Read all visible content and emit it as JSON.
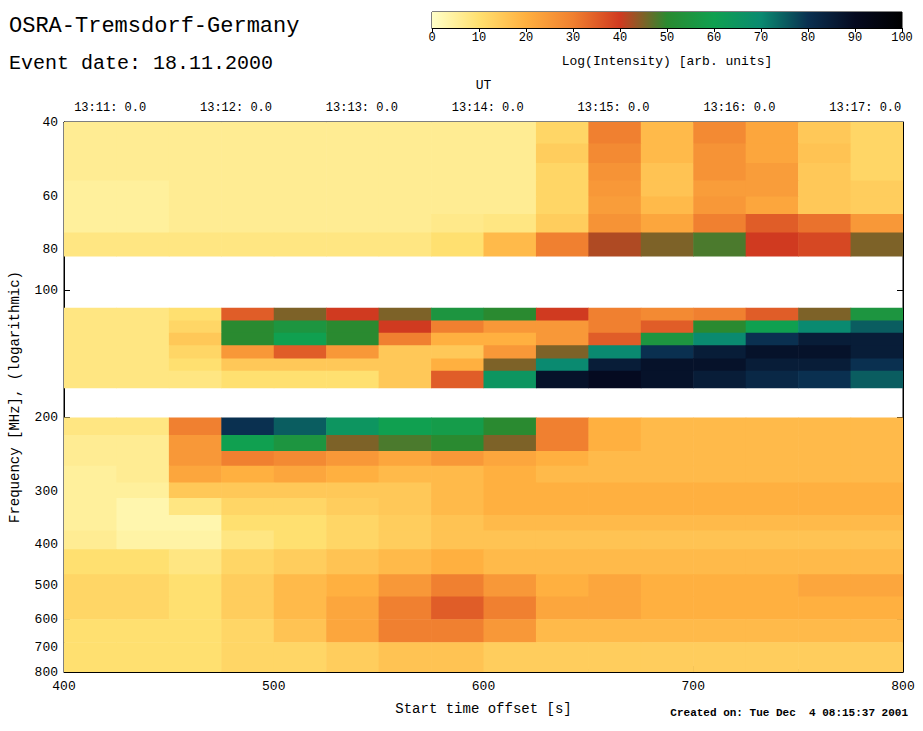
{
  "chart_data": {
    "type": "heatmap",
    "title": "OSRA-Tremsdorf-Germany",
    "subtitle": "Event date: 18.11.2000",
    "annotations": [
      "Created on: Tue Dec  4 08:15:37 2001"
    ],
    "xlabel": "Start time offset [s]",
    "ylabel": "Frequency [MHz], (logarithmic)",
    "x2label": "UT",
    "xlim": [
      400,
      800
    ],
    "xticks": [
      400,
      500,
      600,
      700,
      800
    ],
    "x2lim": [
      400,
      800
    ],
    "x2ticks": [
      {
        "value": 422,
        "label": "13:11: 0.0"
      },
      {
        "value": 482,
        "label": "13:12: 0.0"
      },
      {
        "value": 542,
        "label": "13:13: 0.0"
      },
      {
        "value": 602,
        "label": "13:14: 0.0"
      },
      {
        "value": 662,
        "label": "13:15: 0.0"
      },
      {
        "value": 722,
        "label": "13:16: 0.0"
      },
      {
        "value": 782,
        "label": "13:17: 0.0"
      }
    ],
    "ylim": [
      40,
      800
    ],
    "yticks": [
      40,
      60,
      80,
      100,
      200,
      300,
      400,
      500,
      600,
      700,
      800
    ],
    "log": "y",
    "grid": false,
    "cells": {
      "time_edges": [
        400,
        425,
        450,
        475,
        500,
        525,
        550,
        575,
        600,
        625,
        650,
        675,
        700,
        725,
        750,
        775,
        800
      ],
      "rows": [
        {
          "freq": [
            40,
            45
          ],
          "values": [
            6,
            6,
            6,
            6,
            6,
            6,
            6,
            6,
            6,
            12,
            30,
            18,
            28,
            22,
            15,
            12
          ]
        },
        {
          "freq": [
            45,
            50
          ],
          "values": [
            6,
            6,
            6,
            6,
            6,
            6,
            6,
            6,
            6,
            14,
            28,
            18,
            26,
            22,
            16,
            12
          ]
        },
        {
          "freq": [
            50,
            55
          ],
          "values": [
            6,
            6,
            6,
            6,
            6,
            6,
            6,
            6,
            6,
            12,
            26,
            16,
            26,
            24,
            15,
            12
          ]
        },
        {
          "freq": [
            55,
            60
          ],
          "values": [
            5,
            5,
            6,
            6,
            6,
            6,
            6,
            6,
            6,
            12,
            25,
            16,
            24,
            24,
            15,
            14
          ]
        },
        {
          "freq": [
            60,
            66
          ],
          "values": [
            5,
            5,
            6,
            6,
            6,
            6,
            6,
            6,
            6,
            12,
            24,
            18,
            25,
            22,
            15,
            14
          ]
        },
        {
          "freq": [
            66,
            73
          ],
          "values": [
            5,
            5,
            6,
            6,
            6,
            6,
            6,
            7,
            8,
            14,
            26,
            22,
            30,
            35,
            32,
            25
          ]
        },
        {
          "freq": [
            73,
            83
          ],
          "values": [
            8,
            8,
            8,
            8,
            8,
            8,
            8,
            10,
            18,
            30,
            42,
            45,
            48,
            40,
            38,
            45
          ]
        },
        {
          "freq": [
            110,
            118
          ],
          "values": [
            8,
            8,
            10,
            35,
            45,
            40,
            45,
            55,
            50,
            40,
            30,
            28,
            30,
            35,
            45,
            55
          ]
        },
        {
          "freq": [
            118,
            126
          ],
          "values": [
            8,
            8,
            12,
            50,
            55,
            50,
            40,
            30,
            25,
            25,
            30,
            35,
            50,
            60,
            70,
            75
          ]
        },
        {
          "freq": [
            126,
            135
          ],
          "values": [
            8,
            8,
            15,
            50,
            60,
            50,
            30,
            20,
            20,
            25,
            35,
            55,
            70,
            80,
            85,
            85
          ]
        },
        {
          "freq": [
            135,
            145
          ],
          "values": [
            8,
            8,
            12,
            25,
            35,
            25,
            15,
            15,
            25,
            45,
            70,
            80,
            85,
            88,
            88,
            85
          ]
        },
        {
          "freq": [
            145,
            155
          ],
          "values": [
            8,
            8,
            10,
            15,
            15,
            15,
            15,
            20,
            45,
            70,
            85,
            88,
            88,
            85,
            85,
            80
          ]
        },
        {
          "freq": [
            155,
            170
          ],
          "values": [
            8,
            8,
            8,
            10,
            10,
            10,
            15,
            35,
            65,
            88,
            90,
            88,
            85,
            82,
            80,
            75
          ]
        },
        {
          "freq": [
            200,
            220
          ],
          "values": [
            8,
            8,
            30,
            80,
            75,
            65,
            60,
            58,
            50,
            30,
            20,
            18,
            18,
            18,
            18,
            18
          ]
        },
        {
          "freq": [
            220,
            240
          ],
          "values": [
            6,
            6,
            25,
            60,
            55,
            45,
            48,
            50,
            45,
            30,
            20,
            18,
            18,
            18,
            18,
            18
          ]
        },
        {
          "freq": [
            240,
            260
          ],
          "values": [
            6,
            6,
            25,
            30,
            28,
            25,
            22,
            25,
            22,
            20,
            18,
            18,
            18,
            18,
            18,
            18
          ]
        },
        {
          "freq": [
            260,
            285
          ],
          "values": [
            5,
            6,
            22,
            20,
            22,
            20,
            18,
            18,
            20,
            18,
            18,
            18,
            18,
            18,
            18,
            18
          ]
        },
        {
          "freq": [
            285,
            310
          ],
          "values": [
            5,
            5,
            15,
            15,
            15,
            15,
            15,
            18,
            20,
            20,
            20,
            20,
            20,
            20,
            20,
            20
          ]
        },
        {
          "freq": [
            310,
            340
          ],
          "values": [
            5,
            3,
            8,
            12,
            12,
            14,
            15,
            18,
            20,
            20,
            20,
            20,
            20,
            20,
            20,
            20
          ]
        },
        {
          "freq": [
            340,
            370
          ],
          "values": [
            5,
            3,
            3,
            10,
            10,
            12,
            14,
            16,
            18,
            18,
            18,
            18,
            18,
            18,
            18,
            18
          ]
        },
        {
          "freq": [
            370,
            410
          ],
          "values": [
            6,
            4,
            4,
            8,
            10,
            12,
            14,
            16,
            16,
            16,
            16,
            16,
            16,
            16,
            16,
            16
          ]
        },
        {
          "freq": [
            410,
            470
          ],
          "values": [
            10,
            10,
            8,
            12,
            14,
            16,
            18,
            20,
            18,
            18,
            18,
            18,
            18,
            18,
            18,
            18
          ]
        },
        {
          "freq": [
            470,
            530
          ],
          "values": [
            12,
            12,
            10,
            14,
            18,
            20,
            25,
            30,
            25,
            20,
            22,
            20,
            20,
            20,
            22,
            22
          ]
        },
        {
          "freq": [
            530,
            600
          ],
          "values": [
            12,
            12,
            10,
            14,
            18,
            22,
            30,
            35,
            30,
            22,
            22,
            20,
            20,
            20,
            20,
            20
          ]
        },
        {
          "freq": [
            600,
            680
          ],
          "values": [
            10,
            10,
            10,
            12,
            16,
            22,
            30,
            30,
            25,
            18,
            18,
            18,
            18,
            18,
            18,
            18
          ]
        },
        {
          "freq": [
            680,
            800
          ],
          "values": [
            10,
            10,
            10,
            12,
            12,
            14,
            16,
            16,
            14,
            14,
            14,
            14,
            14,
            14,
            14,
            14
          ]
        }
      ]
    },
    "colorbar": {
      "label": "Log(Intensity) [arb. units]",
      "range": [
        0,
        100
      ],
      "ticks": [
        0,
        10,
        20,
        30,
        40,
        50,
        60,
        70,
        80,
        90,
        100
      ]
    }
  }
}
